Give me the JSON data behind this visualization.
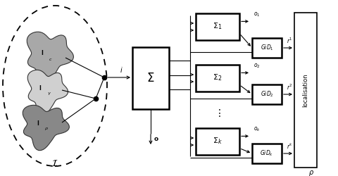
{
  "bg_color": "#ffffff",
  "fig_width": 4.81,
  "fig_height": 2.5,
  "dpi": 100
}
